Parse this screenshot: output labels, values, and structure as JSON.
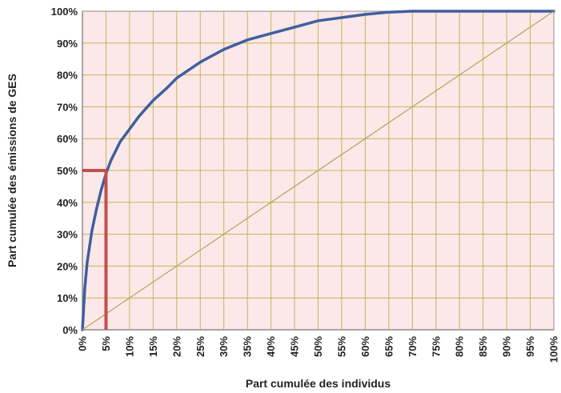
{
  "chart_data": {
    "type": "line",
    "xlabel": "Part cumulée des individus",
    "ylabel": "Part cumulée des émissions de GES",
    "xlim": [
      0,
      100
    ],
    "ylim": [
      0,
      100
    ],
    "x_ticks": [
      "0%",
      "5%",
      "10%",
      "15%",
      "20%",
      "25%",
      "30%",
      "35%",
      "40%",
      "45%",
      "50%",
      "55%",
      "60%",
      "65%",
      "70%",
      "75%",
      "80%",
      "85%",
      "90%",
      "95%",
      "100%"
    ],
    "y_ticks": [
      "0%",
      "10%",
      "20%",
      "30%",
      "40%",
      "50%",
      "60%",
      "70%",
      "80%",
      "90%",
      "100%"
    ],
    "grid": true,
    "series": [
      {
        "color": "#3f5f9e",
        "x": [
          0,
          0.5,
          1,
          2,
          3,
          4,
          5,
          6,
          7,
          8,
          10,
          12,
          15,
          18,
          20,
          25,
          30,
          35,
          40,
          45,
          50,
          55,
          60,
          65,
          70,
          75,
          80,
          85,
          90,
          95,
          100
        ],
        "y": [
          0,
          13,
          21,
          31,
          38,
          44,
          49,
          53,
          56,
          59,
          63,
          67,
          72,
          76,
          79,
          84,
          88,
          91,
          93,
          95,
          97,
          98,
          99,
          99.7,
          100,
          100,
          100,
          100,
          100,
          100,
          100
        ]
      },
      {
        "color": "#b5a55c",
        "x": [
          0,
          100
        ],
        "y": [
          0,
          100
        ]
      }
    ],
    "annotations": [
      {
        "type": "marker",
        "x": 5,
        "y": 50,
        "color": "#c0504d"
      }
    ],
    "colors": {
      "plot_background": "#fce8e8",
      "grid": "#c8b25a",
      "axis": "#8c8c8c",
      "marker": "#c0504d"
    }
  }
}
